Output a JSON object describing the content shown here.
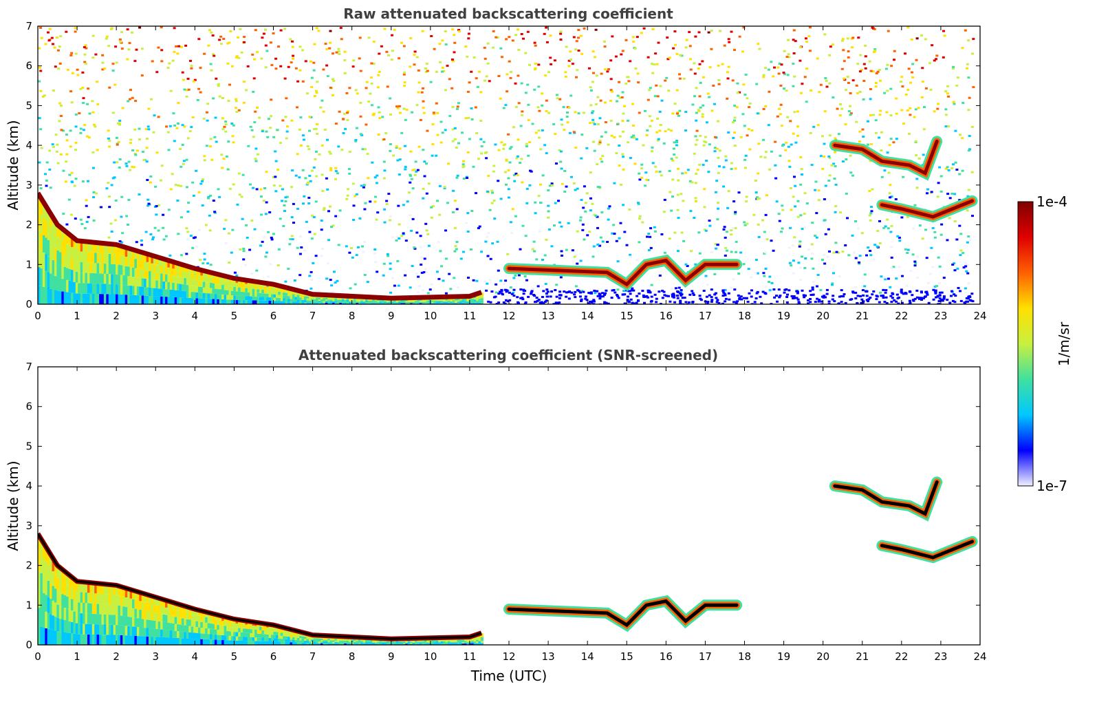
{
  "chart_data": [
    {
      "type": "heatmap",
      "title": "Raw attenuated backscattering coefficient",
      "xlabel": "",
      "ylabel": "Altitude (km)",
      "xlim": [
        0,
        24
      ],
      "ylim": [
        0,
        7
      ],
      "x_ticks": [
        "0",
        "1",
        "2",
        "3",
        "4",
        "5",
        "6",
        "7",
        "8",
        "9",
        "10",
        "11",
        "12",
        "13",
        "14",
        "15",
        "16",
        "17",
        "18",
        "19",
        "20",
        "21",
        "22",
        "23",
        "24"
      ],
      "y_ticks": [
        "0",
        "1",
        "2",
        "3",
        "4",
        "5",
        "6",
        "7"
      ],
      "features": [
        {
          "kind": "noise_background",
          "x": [
            0,
            23.8
          ],
          "y": [
            0.3,
            7
          ]
        },
        {
          "kind": "boundary_layer",
          "points": [
            [
              0,
              2.8
            ],
            [
              0.5,
              2.0
            ],
            [
              1,
              1.6
            ],
            [
              2,
              1.5
            ],
            [
              3,
              1.2
            ],
            [
              4,
              0.9
            ],
            [
              5,
              0.65
            ],
            [
              6,
              0.5
            ],
            [
              7,
              0.25
            ],
            [
              9,
              0.15
            ],
            [
              11,
              0.2
            ],
            [
              11.3,
              0.3
            ]
          ]
        },
        {
          "kind": "cloud_layer",
          "points": [
            [
              12,
              0.9
            ],
            [
              14.5,
              0.8
            ],
            [
              15,
              0.5
            ],
            [
              15.5,
              1.0
            ],
            [
              16,
              1.1
            ],
            [
              16.5,
              0.6
            ],
            [
              17,
              1.0
            ],
            [
              17.8,
              1.0
            ]
          ]
        },
        {
          "kind": "cloud_layer",
          "points": [
            [
              20.3,
              4.0
            ],
            [
              21,
              3.9
            ],
            [
              21.5,
              3.6
            ],
            [
              22.2,
              3.5
            ],
            [
              22.6,
              3.3
            ],
            [
              22.9,
              4.1
            ]
          ]
        },
        {
          "kind": "cloud_layer",
          "points": [
            [
              21.5,
              2.5
            ],
            [
              22,
              2.4
            ],
            [
              22.8,
              2.2
            ],
            [
              23.8,
              2.6
            ]
          ]
        }
      ]
    },
    {
      "type": "heatmap",
      "title": "Attenuated backscattering coefficient (SNR-screened)",
      "xlabel": "Time (UTC)",
      "ylabel": "Altitude (km)",
      "xlim": [
        0,
        24
      ],
      "ylim": [
        0,
        7
      ],
      "x_ticks": [
        "0",
        "1",
        "2",
        "3",
        "4",
        "5",
        "6",
        "7",
        "8",
        "9",
        "10",
        "11",
        "12",
        "13",
        "14",
        "15",
        "16",
        "17",
        "18",
        "19",
        "20",
        "21",
        "22",
        "23",
        "24"
      ],
      "y_ticks": [
        "0",
        "1",
        "2",
        "3",
        "4",
        "5",
        "6",
        "7"
      ],
      "features": [
        {
          "kind": "boundary_layer",
          "points": [
            [
              0,
              2.8
            ],
            [
              0.5,
              2.0
            ],
            [
              1,
              1.6
            ],
            [
              2,
              1.5
            ],
            [
              3,
              1.2
            ],
            [
              4,
              0.9
            ],
            [
              5,
              0.65
            ],
            [
              6,
              0.5
            ],
            [
              7,
              0.25
            ],
            [
              9,
              0.15
            ],
            [
              11,
              0.2
            ],
            [
              11.3,
              0.3
            ]
          ]
        },
        {
          "kind": "cloud_layer",
          "points": [
            [
              12,
              0.9
            ],
            [
              14.5,
              0.8
            ],
            [
              15,
              0.5
            ],
            [
              15.5,
              1.0
            ],
            [
              16,
              1.1
            ],
            [
              16.5,
              0.6
            ],
            [
              17,
              1.0
            ],
            [
              17.8,
              1.0
            ]
          ]
        },
        {
          "kind": "cloud_layer",
          "points": [
            [
              20.3,
              4.0
            ],
            [
              21,
              3.9
            ],
            [
              21.5,
              3.6
            ],
            [
              22.2,
              3.5
            ],
            [
              22.6,
              3.3
            ],
            [
              22.9,
              4.1
            ]
          ]
        },
        {
          "kind": "cloud_layer",
          "points": [
            [
              21.5,
              2.5
            ],
            [
              22,
              2.4
            ],
            [
              22.8,
              2.2
            ],
            [
              23.8,
              2.6
            ]
          ]
        }
      ]
    }
  ],
  "colorbar": {
    "label": "1/m/sr",
    "max_label": "1e-4",
    "min_label": "1e-7",
    "scale": "log",
    "range": [
      1e-07,
      0.0001
    ],
    "colormap": [
      "#f0f0ff",
      "#0000ff",
      "#00c8ff",
      "#40e0a0",
      "#c8f040",
      "#ffe000",
      "#ff6000",
      "#e00000",
      "#800000"
    ]
  }
}
